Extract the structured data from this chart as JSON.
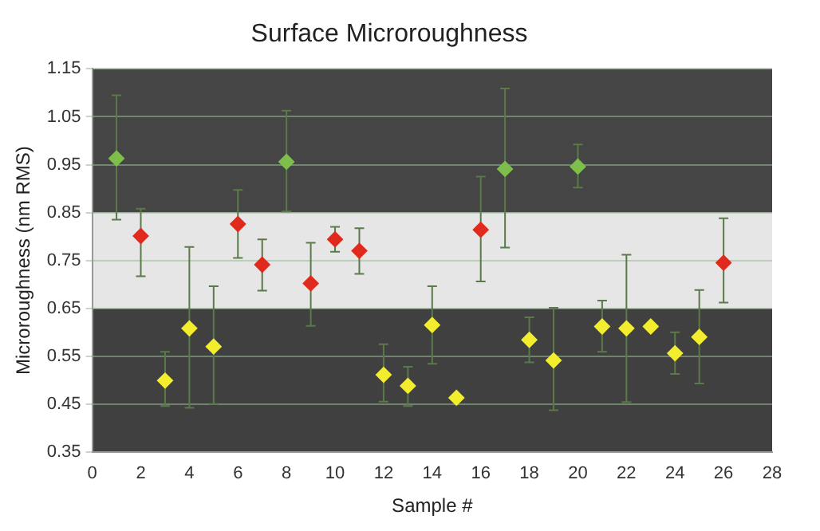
{
  "chart_data": {
    "type": "scatter",
    "title": "Surface Microroughness",
    "xlabel": "Sample #",
    "ylabel": "Microroughness (nm RMS)",
    "xlim": [
      0,
      28
    ],
    "xticks": [
      0,
      2,
      4,
      6,
      8,
      10,
      12,
      14,
      16,
      18,
      20,
      22,
      24,
      26,
      28
    ],
    "ylim": [
      0.35,
      1.15
    ],
    "yticks": [
      {
        "value": 0.35,
        "label": "0.35"
      },
      {
        "value": 0.45,
        "label": "0.45"
      },
      {
        "value": 0.55,
        "label": "0.55"
      },
      {
        "value": 0.65,
        "label": "0.65"
      },
      {
        "value": 0.75,
        "label": "0.75"
      },
      {
        "value": 0.85,
        "label": "0.85"
      },
      {
        "value": 0.95,
        "label": "0.95"
      },
      {
        "value": 1.05,
        "label": "1.05"
      },
      {
        "value": 1.15,
        "label": "1.15"
      }
    ],
    "grid": "y",
    "legend": false,
    "marker": "diamond",
    "bands": [
      {
        "axis": "y",
        "from": 0.35,
        "to": 0.65,
        "color": "#404040"
      },
      {
        "axis": "y",
        "from": 0.65,
        "to": 0.85,
        "color": "#e6e6e6"
      },
      {
        "axis": "y",
        "from": 0.85,
        "to": 1.15,
        "color": "#454545"
      }
    ],
    "series": [
      {
        "color": "#7dbf4a",
        "x": [
          1,
          8,
          17,
          20
        ],
        "values": [
          0.963,
          0.956,
          0.941,
          0.946
        ],
        "errors": [
          [
            0.835,
            1.095
          ],
          [
            0.852,
            1.063
          ],
          [
            0.777,
            1.109
          ],
          [
            0.902,
            0.992
          ]
        ]
      },
      {
        "color": "#e02a1e",
        "x": [
          2,
          6,
          7,
          9,
          10,
          11,
          16,
          26
        ],
        "values": [
          0.801,
          0.826,
          0.741,
          0.702,
          0.794,
          0.77,
          0.814,
          0.745
        ],
        "errors": [
          [
            0.717,
            0.858
          ],
          [
            0.755,
            0.897
          ],
          [
            0.687,
            0.794
          ],
          [
            0.613,
            0.787
          ],
          [
            0.768,
            0.82
          ],
          [
            0.722,
            0.817
          ],
          [
            0.706,
            0.925
          ],
          [
            0.662,
            0.838
          ]
        ]
      },
      {
        "color": "#f2ee2e",
        "x": [
          3,
          4,
          5,
          12,
          13,
          14,
          15,
          18,
          19,
          21,
          22,
          23,
          24,
          25
        ],
        "values": [
          0.499,
          0.608,
          0.57,
          0.511,
          0.488,
          0.615,
          0.463,
          0.584,
          0.541,
          0.612,
          0.608,
          0.612,
          0.556,
          0.59
        ],
        "errors": [
          [
            0.446,
            0.559
          ],
          [
            0.442,
            0.778
          ],
          [
            0.45,
            0.696
          ],
          [
            0.455,
            0.575
          ],
          [
            0.446,
            0.528
          ],
          [
            0.534,
            0.696
          ],
          null,
          [
            0.537,
            0.631
          ],
          [
            0.437,
            0.651
          ],
          [
            0.559,
            0.666
          ],
          [
            0.454,
            0.762
          ],
          null,
          [
            0.513,
            0.6
          ],
          [
            0.493,
            0.688
          ]
        ]
      }
    ]
  }
}
